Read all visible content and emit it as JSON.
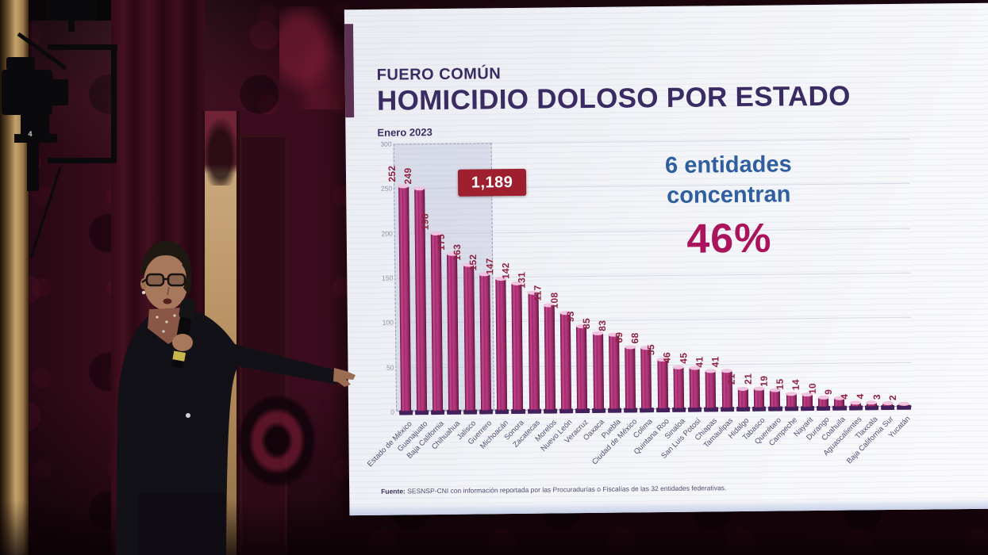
{
  "scene": {
    "camera_label": "4"
  },
  "slide": {
    "kicker": "FUERO COMÚN",
    "title": "HOMICIDIO DOLOSO POR ESTADO",
    "subtitle": "Enero 2023",
    "annotation": {
      "line1": "6 entidades",
      "line2": "concentran",
      "percent": "46%"
    },
    "source_label": "Fuente:",
    "source_text": " SESNSP-CNI con información reportada por las Procuradurías o Fiscalías de las 32 entidades federativas.",
    "colors": {
      "title": "#3a2c62",
      "bar": "#b13277",
      "bar_edge": "#7c2257",
      "value_label": "#8e2140",
      "annotation_blue": "#2f5f9e",
      "annotation_magenta": "#a9145c",
      "callout_bg": "#9e1f2d"
    }
  },
  "chart_data": {
    "type": "bar",
    "title": "HOMICIDIO DOLOSO POR ESTADO",
    "subtitle": "Enero 2023",
    "categories": [
      "Estado de México",
      "Guanajuato",
      "Baja California",
      "Chihuahua",
      "Jalisco",
      "Guerrero",
      "Michoacán",
      "Sonora",
      "Zacatecas",
      "Morelos",
      "Nuevo León",
      "Veracruz",
      "Oaxaca",
      "Puebla",
      "Ciudad de México",
      "Colima",
      "Quintana Roo",
      "Sinaloa",
      "San Luis Potosí",
      "Chiapas",
      "Tamaulipas",
      "Hidalgo",
      "Tabasco",
      "Querétaro",
      "Campeche",
      "Nayarit",
      "Durango",
      "Coahuila",
      "Aguascalientes",
      "Tlaxcala",
      "Baja California Sur",
      "Yucatán"
    ],
    "values": [
      252,
      249,
      198,
      175,
      163,
      152,
      147,
      142,
      131,
      117,
      108,
      93,
      85,
      83,
      69,
      68,
      55,
      46,
      45,
      41,
      41,
      21,
      21,
      19,
      15,
      14,
      10,
      9,
      4,
      4,
      3,
      2
    ],
    "xlabel": "",
    "ylabel": "",
    "ylim": [
      0,
      300
    ],
    "yticks": [
      0,
      50,
      100,
      150,
      200,
      250,
      300
    ],
    "grid": true,
    "legend": false,
    "highlight": {
      "first_n": 6,
      "sum": 1189,
      "label": "1,189"
    }
  }
}
